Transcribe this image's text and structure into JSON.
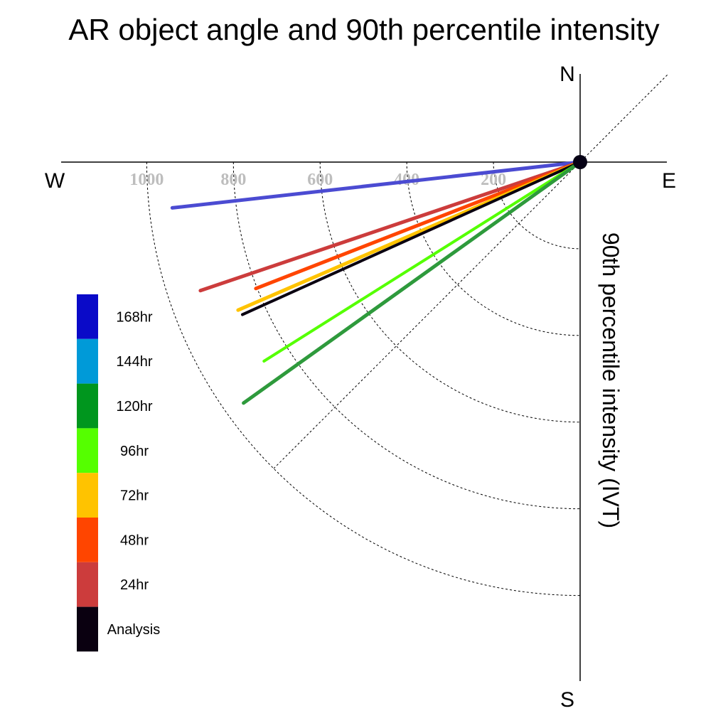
{
  "chart_data": {
    "type": "polar-vector",
    "title": "AR object angle and 90th percentile intensity",
    "ylabel": "90th percentile intensity (IVT)",
    "compass": {
      "north": "N",
      "south": "S",
      "east": "E",
      "west": "W"
    },
    "radial_ticks": [
      200,
      400,
      600,
      800,
      1000
    ],
    "radial_tick_labels": [
      "200",
      "400",
      "600",
      "800",
      "1000"
    ],
    "radial_max": 1000,
    "angle_unit": "degrees below west axis",
    "grid": true,
    "grid_style": "dotted",
    "diagonal_reference_deg": 45,
    "legend": {
      "placement": "left",
      "items": [
        {
          "label": "168hr",
          "color": "#0a0ac8"
        },
        {
          "label": "144hr",
          "color": "#009ad8"
        },
        {
          "label": "120hr",
          "color": "#00961e"
        },
        {
          "label": "96hr",
          "color": "#55ff00"
        },
        {
          "label": "72hr",
          "color": "#ffc300"
        },
        {
          "label": "48hr",
          "color": "#ff4500"
        },
        {
          "label": "24hr",
          "color": "#cc3c3c"
        },
        {
          "label": "Analysis",
          "color": "#0a0010"
        }
      ]
    },
    "series": [
      {
        "name": "168hr",
        "color": "#4b4bd2",
        "magnitude": 947,
        "angle": 6.4,
        "width": 5
      },
      {
        "name": "24hr",
        "color": "#cc3c3c",
        "magnitude": 925,
        "angle": 18.7,
        "width": 5
      },
      {
        "name": "48hr",
        "color": "#ff4500",
        "magnitude": 803,
        "angle": 21.3,
        "width": 5
      },
      {
        "name": "72hr",
        "color": "#ffc300",
        "magnitude": 860,
        "angle": 23.4,
        "width": 5
      },
      {
        "name": "Analysis",
        "color": "#0a0010",
        "magnitude": 855,
        "angle": 24.3,
        "width": 4
      },
      {
        "name": "96hr",
        "color": "#55ff00",
        "magnitude": 862,
        "angle": 32.2,
        "width": 4
      },
      {
        "name": "120hr",
        "color": "#2e9a3c",
        "magnitude": 955,
        "angle": 35.6,
        "width": 5
      }
    ]
  }
}
